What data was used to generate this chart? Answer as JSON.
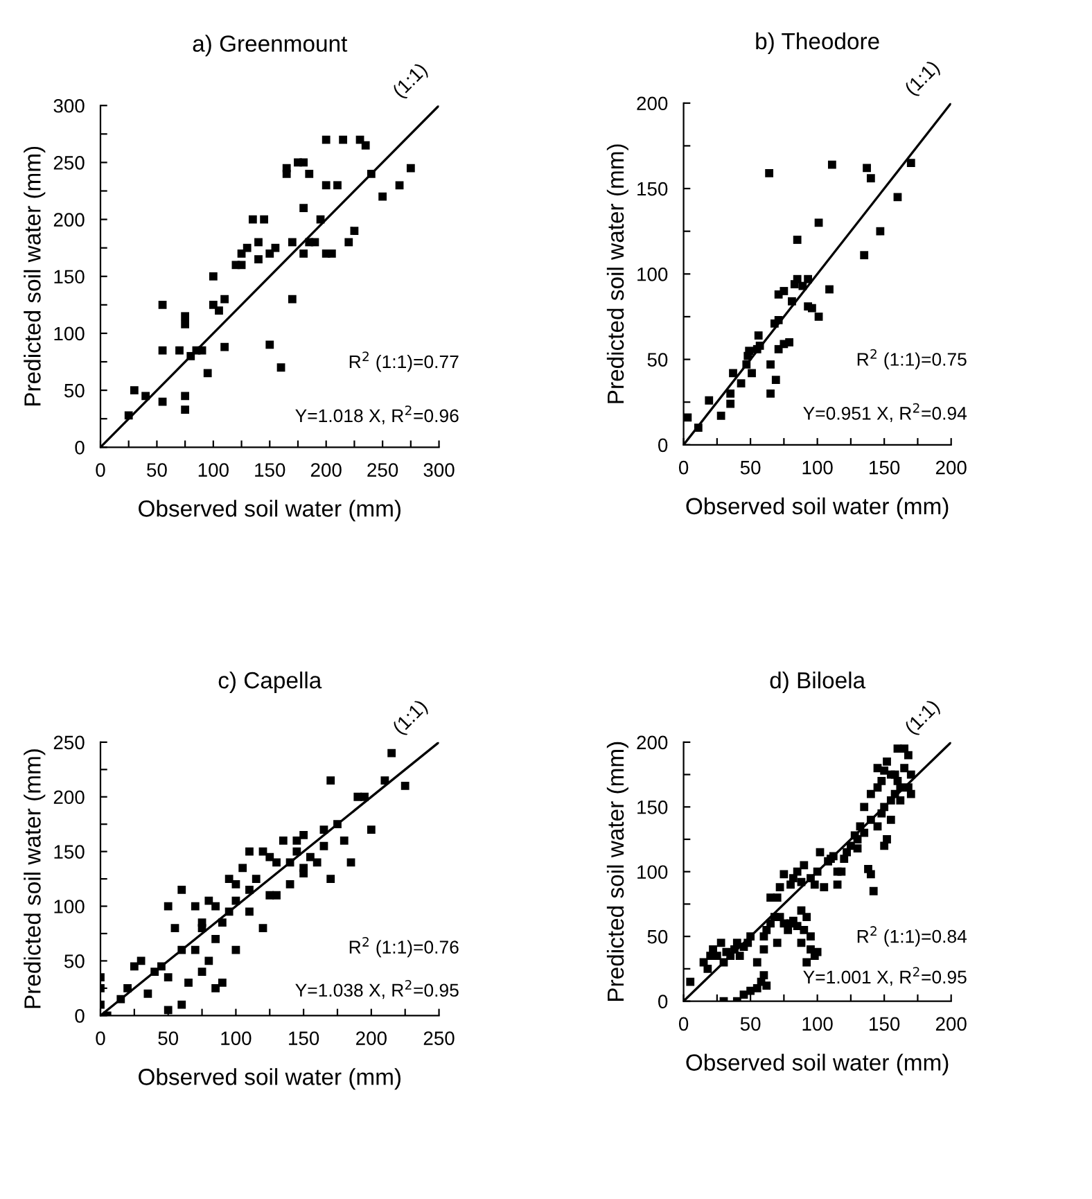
{
  "chart_data": [
    {
      "type": "scatter",
      "title": "a) Greenmount",
      "xlabel": "Observed soil water (mm)",
      "ylabel": "Predicted soil water (mm)",
      "xlim": [
        0,
        300
      ],
      "ylim": [
        0,
        300
      ],
      "xticks": [
        0,
        {
          "value": 25,
          "label": null
        },
        50,
        {
          "value": 75,
          "label": null
        },
        100,
        {
          "value": 125,
          "label": null
        },
        150,
        {
          "value": 175,
          "label": null
        },
        200,
        {
          "value": 225,
          "label": null
        },
        250,
        {
          "value": 275,
          "label": null
        },
        300
      ],
      "yticks": [
        0,
        {
          "value": 25,
          "label": null
        },
        50,
        {
          "value": 75,
          "label": null
        },
        100,
        {
          "value": 125,
          "label": null
        },
        150,
        {
          "value": 175,
          "label": null
        },
        200,
        {
          "value": 225,
          "label": null
        },
        250,
        {
          "value": 275,
          "label": null
        },
        300
      ],
      "series": [
        {
          "type": "scatter",
          "marker": "square",
          "color": "#000000",
          "x": [
            25,
            30,
            40,
            55,
            55,
            55,
            70,
            75,
            75,
            75,
            75,
            80,
            85,
            90,
            95,
            100,
            100,
            105,
            110,
            120,
            125,
            130,
            135,
            140,
            145,
            150,
            150,
            155,
            160,
            165,
            165,
            170,
            175,
            180,
            180,
            185,
            190,
            195,
            200,
            200,
            205,
            210,
            215,
            220,
            225,
            230,
            235,
            240,
            250,
            265,
            275,
            170,
            180,
            110,
            140,
            125,
            185,
            200
          ],
          "values": [
            28,
            50,
            45,
            125,
            85,
            40,
            85,
            115,
            108,
            45,
            33,
            80,
            85,
            85,
            65,
            150,
            125,
            120,
            88,
            160,
            160,
            175,
            200,
            180,
            200,
            170,
            90,
            175,
            70,
            240,
            245,
            130,
            250,
            250,
            210,
            180,
            180,
            200,
            170,
            270,
            170,
            230,
            270,
            180,
            190,
            270,
            265,
            240,
            220,
            230,
            245,
            180,
            170,
            130,
            165,
            170,
            240,
            230
          ]
        },
        {
          "type": "line",
          "name": "(1:1)",
          "color": "#000000",
          "x": [
            0,
            300
          ],
          "values": [
            0,
            300
          ]
        }
      ],
      "annotations": [
        "R$^{2}$ (1:1)=0.77",
        "Y=1.018 X, R$^{2}$=0.96"
      ]
    },
    {
      "type": "scatter",
      "title": "b) Theodore",
      "xlabel": "Observed soil water (mm)",
      "ylabel": "Predicted soil water (mm)",
      "xlim": [
        0,
        200
      ],
      "ylim": [
        0,
        200
      ],
      "xticks": [
        0,
        {
          "value": 25,
          "label": null
        },
        50,
        {
          "value": 75,
          "label": null
        },
        100,
        {
          "value": 125,
          "label": null
        },
        150,
        {
          "value": 175,
          "label": null
        },
        200
      ],
      "yticks": [
        0,
        {
          "value": 25,
          "label": null
        },
        50,
        {
          "value": 75,
          "label": null
        },
        100,
        {
          "value": 125,
          "label": null
        },
        150,
        {
          "value": 175,
          "label": null
        },
        200
      ],
      "series": [
        {
          "type": "scatter",
          "marker": "square",
          "color": "#000000",
          "x": [
            3,
            11,
            19,
            28,
            35,
            35,
            37,
            43,
            47,
            48,
            49,
            51,
            55,
            56,
            57,
            65,
            65,
            69,
            68,
            71,
            71,
            75,
            79,
            71,
            75,
            81,
            83,
            85,
            89,
            93,
            93,
            96,
            101,
            85,
            101,
            109,
            111,
            64,
            135,
            147,
            137,
            140,
            160,
            170
          ],
          "values": [
            16,
            10,
            26,
            17,
            24,
            30,
            42,
            36,
            47,
            52,
            55,
            42,
            56,
            64,
            58,
            47,
            30,
            38,
            71,
            73,
            56,
            59,
            60,
            88,
            90,
            84,
            94,
            97,
            93,
            97,
            81,
            80,
            75,
            120,
            130,
            91,
            164,
            159,
            111,
            125,
            162,
            156,
            145,
            165
          ]
        },
        {
          "type": "line",
          "name": "(1:1)",
          "color": "#000000",
          "x": [
            0,
            200
          ],
          "values": [
            0,
            200
          ]
        }
      ],
      "annotations": [
        "R$^{2}$ (1:1)=0.75",
        "Y=0.951 X, R$^{2}$=0.94"
      ]
    },
    {
      "type": "scatter",
      "title": "c) Capella",
      "xlabel": "Observed soil water (mm)",
      "ylabel": "Predicted soil water (mm)",
      "xlim": [
        0,
        250
      ],
      "ylim": [
        0,
        250
      ],
      "xticks": [
        0,
        {
          "value": 25,
          "label": null
        },
        50,
        {
          "value": 75,
          "label": null
        },
        100,
        {
          "value": 125,
          "label": null
        },
        150,
        {
          "value": 175,
          "label": null
        },
        200,
        {
          "value": 225,
          "label": null
        },
        250
      ],
      "yticks": [
        0,
        {
          "value": 25,
          "label": null
        },
        50,
        {
          "value": 75,
          "label": null
        },
        100,
        {
          "value": 125,
          "label": null
        },
        150,
        {
          "value": 175,
          "label": null
        },
        200,
        {
          "value": 225,
          "label": null
        },
        250
      ],
      "series": [
        {
          "type": "scatter",
          "marker": "square",
          "color": "#000000",
          "x": [
            0,
            0,
            0,
            5,
            15,
            20,
            25,
            30,
            35,
            40,
            45,
            50,
            50,
            50,
            55,
            60,
            60,
            65,
            70,
            70,
            75,
            75,
            80,
            80,
            85,
            85,
            90,
            90,
            95,
            95,
            100,
            100,
            105,
            110,
            110,
            115,
            120,
            125,
            130,
            130,
            135,
            140,
            140,
            145,
            145,
            150,
            150,
            155,
            160,
            165,
            170,
            175,
            180,
            185,
            190,
            195,
            200,
            210,
            215,
            225,
            120,
            100,
            150,
            165,
            170,
            125,
            60,
            85,
            110,
            75
          ],
          "values": [
            10,
            25,
            35,
            0,
            15,
            25,
            45,
            50,
            20,
            40,
            45,
            35,
            100,
            5,
            80,
            60,
            115,
            30,
            60,
            100,
            85,
            40,
            105,
            50,
            25,
            100,
            30,
            85,
            95,
            125,
            120,
            105,
            135,
            150,
            115,
            125,
            150,
            145,
            110,
            140,
            160,
            120,
            140,
            160,
            150,
            135,
            165,
            145,
            140,
            170,
            125,
            175,
            160,
            140,
            200,
            200,
            170,
            215,
            240,
            210,
            80,
            60,
            130,
            155,
            215,
            110,
            10,
            70,
            95,
            80
          ]
        },
        {
          "type": "line",
          "name": "(1:1)",
          "color": "#000000",
          "x": [
            0,
            250
          ],
          "values": [
            0,
            250
          ]
        }
      ],
      "annotations": [
        "R$^{2}$ (1:1)=0.76",
        "Y=1.038 X, R$^{2}$=0.95"
      ]
    },
    {
      "type": "scatter",
      "title": "d) Biloela",
      "xlabel": "Observed soil water (mm)",
      "ylabel": "Predicted soil water (mm)",
      "xlim": [
        0,
        200
      ],
      "ylim": [
        0,
        200
      ],
      "xticks": [
        0,
        {
          "value": 25,
          "label": null
        },
        50,
        {
          "value": 75,
          "label": null
        },
        100,
        {
          "value": 125,
          "label": null
        },
        150,
        {
          "value": 175,
          "label": null
        },
        200
      ],
      "yticks": [
        0,
        {
          "value": 25,
          "label": null
        },
        50,
        {
          "value": 75,
          "label": null
        },
        100,
        {
          "value": 125,
          "label": null
        },
        150,
        {
          "value": 175,
          "label": null
        },
        200
      ],
      "series": [
        {
          "type": "scatter",
          "marker": "square",
          "color": "#000000",
          "x": [
            5,
            15,
            18,
            20,
            22,
            25,
            28,
            30,
            32,
            35,
            38,
            40,
            42,
            45,
            48,
            50,
            30,
            40,
            45,
            50,
            55,
            58,
            60,
            62,
            55,
            60,
            62,
            65,
            68,
            70,
            72,
            75,
            78,
            80,
            82,
            85,
            88,
            90,
            92,
            95,
            95,
            98,
            100,
            88,
            92,
            60,
            70,
            80,
            82,
            85,
            88,
            90,
            95,
            98,
            100,
            102,
            105,
            108,
            110,
            112,
            115,
            118,
            120,
            122,
            125,
            128,
            130,
            132,
            135,
            138,
            140,
            140,
            142,
            145,
            148,
            150,
            150,
            152,
            155,
            155,
            158,
            160,
            162,
            158,
            150,
            148,
            140,
            145,
            152,
            155,
            160,
            165,
            168,
            165,
            170,
            170,
            168,
            162,
            145,
            135,
            130,
            115,
            75,
            72,
            65
          ],
          "values": [
            15,
            30,
            25,
            35,
            40,
            35,
            45,
            30,
            38,
            35,
            40,
            45,
            35,
            42,
            45,
            50,
            0,
            0,
            5,
            8,
            10,
            15,
            20,
            12,
            30,
            40,
            55,
            60,
            65,
            80,
            65,
            60,
            55,
            60,
            62,
            58,
            70,
            55,
            65,
            50,
            40,
            35,
            38,
            45,
            30,
            50,
            45,
            90,
            95,
            100,
            92,
            105,
            95,
            90,
            100,
            115,
            88,
            108,
            110,
            112,
            90,
            100,
            110,
            115,
            120,
            128,
            125,
            135,
            130,
            102,
            98,
            140,
            85,
            135,
            145,
            150,
            120,
            125,
            140,
            155,
            160,
            170,
            165,
            175,
            178,
            170,
            160,
            180,
            185,
            175,
            195,
            195,
            190,
            180,
            175,
            160,
            165,
            155,
            165,
            150,
            118,
            100,
            98,
            88,
            80
          ]
        },
        {
          "type": "line",
          "name": "(1:1)",
          "color": "#000000",
          "x": [
            0,
            200
          ],
          "values": [
            0,
            200
          ]
        }
      ],
      "annotations": [
        "R$^{2}$ (1:1)=0.84",
        "Y=1.001 X, R$^{2}$=0.95"
      ]
    }
  ]
}
